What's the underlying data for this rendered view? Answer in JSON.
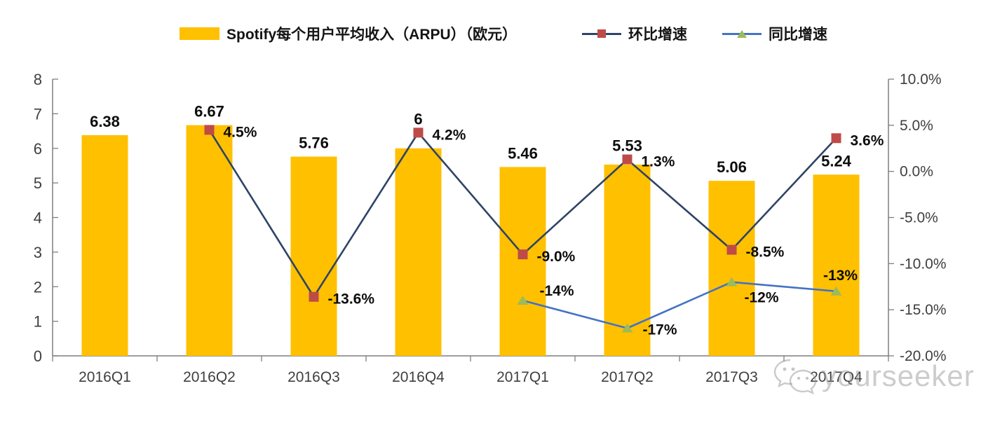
{
  "chart_data": {
    "type": "bar",
    "subtype": "combo-bar-line",
    "title": "",
    "categories": [
      "2016Q1",
      "2016Q2",
      "2016Q3",
      "2016Q4",
      "2017Q1",
      "2017Q2",
      "2017Q3",
      "2017Q4"
    ],
    "series": [
      {
        "name": "Spotify每个用户平均收入（ARPU）（欧元）",
        "type": "bar",
        "axis": "left",
        "color": "#FFC000",
        "values": [
          6.38,
          6.67,
          5.76,
          6,
          5.46,
          5.53,
          5.06,
          5.24
        ],
        "labels": [
          "6.38",
          "6.67",
          "5.76",
          "6",
          "5.46",
          "5.53",
          "5.06",
          "5.24"
        ]
      },
      {
        "name": "环比增速",
        "type": "line",
        "axis": "right",
        "color": "#2E4465",
        "marker": "square",
        "marker_color": "#BE4B48",
        "values": [
          null,
          4.5,
          -13.6,
          4.2,
          -9.0,
          1.3,
          -8.5,
          3.6
        ],
        "labels": [
          null,
          "4.5%",
          "-13.6%",
          "4.2%",
          "-9.0%",
          "1.3%",
          "-8.5%",
          "3.6%"
        ]
      },
      {
        "name": "同比增速",
        "type": "line",
        "axis": "right",
        "color": "#4472C4",
        "marker": "triangle",
        "marker_color": "#9CBB59",
        "values": [
          null,
          null,
          null,
          null,
          -14,
          -17,
          -12,
          -13
        ],
        "labels": [
          null,
          null,
          null,
          null,
          "-14%",
          "-17%",
          "-12%",
          "-13%"
        ]
      }
    ],
    "left_axis": {
      "min": 0,
      "max": 8,
      "tick_values": [
        0,
        1,
        2,
        3,
        4,
        5,
        6,
        7,
        8
      ],
      "tick_labels": [
        "0",
        "1",
        "2",
        "3",
        "4",
        "5",
        "6",
        "7",
        "8"
      ]
    },
    "right_axis": {
      "min": -20,
      "max": 10,
      "tick_values": [
        10,
        5,
        0,
        -5,
        -10,
        -15,
        -20
      ],
      "tick_labels": [
        "10.0%",
        "5.0%",
        "0.0%",
        "-5.0%",
        "-10.0%",
        "-15.0%",
        "-20.0%"
      ]
    },
    "grid": false,
    "legend_position": "top"
  },
  "watermark": {
    "text": "yourseeker"
  }
}
